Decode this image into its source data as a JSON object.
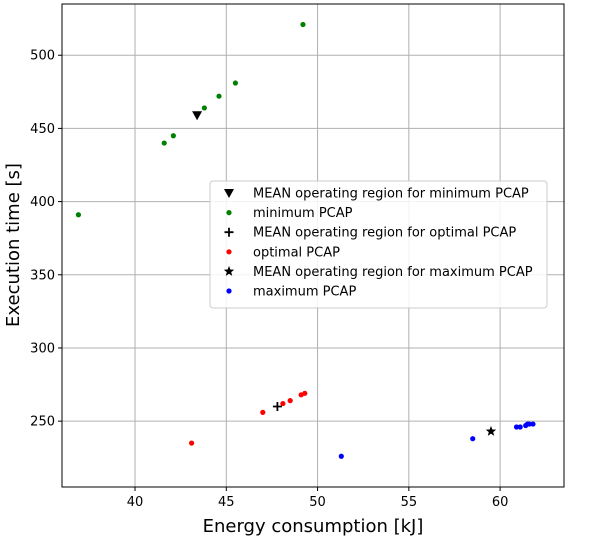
{
  "chart_data": {
    "type": "scatter",
    "title": "",
    "xlabel": "Energy consumption [kJ]",
    "ylabel": "Execution time [s]",
    "xlim": [
      36,
      63.5
    ],
    "ylim": [
      205,
      535
    ],
    "xticks": [
      40,
      45,
      50,
      55,
      60
    ],
    "yticks": [
      250,
      300,
      350,
      400,
      450,
      500
    ],
    "grid": true,
    "legend_position": "center-right",
    "series": [
      {
        "name": "MEAN operating region for minimum PCAP",
        "marker": "triangle-down",
        "color": "#000000",
        "points": [
          {
            "x": 43.4,
            "y": 459
          }
        ]
      },
      {
        "name": "minimum PCAP",
        "marker": "dot",
        "color": "#008000",
        "points": [
          {
            "x": 36.9,
            "y": 391
          },
          {
            "x": 41.6,
            "y": 440
          },
          {
            "x": 42.1,
            "y": 445
          },
          {
            "x": 43.8,
            "y": 464
          },
          {
            "x": 44.6,
            "y": 472
          },
          {
            "x": 45.5,
            "y": 481
          },
          {
            "x": 49.2,
            "y": 521
          }
        ]
      },
      {
        "name": "MEAN operating region for optimal PCAP",
        "marker": "plus",
        "color": "#000000",
        "points": [
          {
            "x": 47.8,
            "y": 260
          }
        ]
      },
      {
        "name": "optimal PCAP",
        "marker": "dot",
        "color": "#ff0000",
        "points": [
          {
            "x": 43.1,
            "y": 235
          },
          {
            "x": 47.0,
            "y": 256
          },
          {
            "x": 48.1,
            "y": 262
          },
          {
            "x": 48.5,
            "y": 264
          },
          {
            "x": 49.1,
            "y": 268
          },
          {
            "x": 49.3,
            "y": 269
          }
        ]
      },
      {
        "name": "MEAN operating region for maximum PCAP",
        "marker": "star",
        "color": "#000000",
        "points": [
          {
            "x": 59.5,
            "y": 243
          }
        ]
      },
      {
        "name": "maximum PCAP",
        "marker": "dot",
        "color": "#0000ff",
        "points": [
          {
            "x": 51.3,
            "y": 226
          },
          {
            "x": 58.5,
            "y": 238
          },
          {
            "x": 60.9,
            "y": 246
          },
          {
            "x": 61.1,
            "y": 246
          },
          {
            "x": 61.4,
            "y": 247
          },
          {
            "x": 61.5,
            "y": 248
          },
          {
            "x": 61.6,
            "y": 248
          },
          {
            "x": 61.8,
            "y": 248
          }
        ]
      }
    ]
  }
}
